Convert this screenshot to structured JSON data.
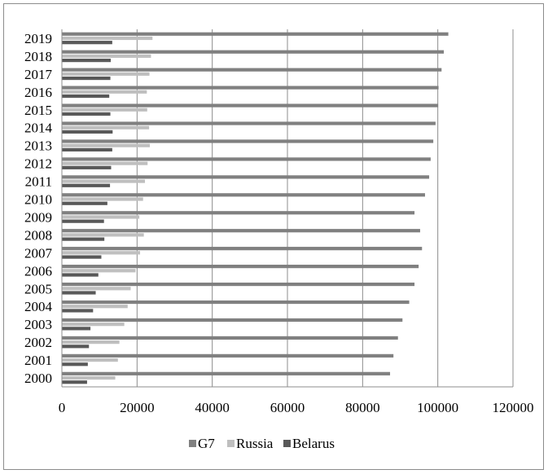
{
  "chart_data": {
    "type": "bar",
    "orientation": "horizontal",
    "categories": [
      "2000",
      "2001",
      "2002",
      "2003",
      "2004",
      "2005",
      "2006",
      "2007",
      "2008",
      "2009",
      "2010",
      "2011",
      "2012",
      "2013",
      "2014",
      "2015",
      "2016",
      "2017",
      "2018",
      "2019"
    ],
    "series": [
      {
        "name": "G7",
        "color": "#808080",
        "values": [
          87300,
          88200,
          89400,
          90600,
          92400,
          93800,
          94900,
          95800,
          95300,
          93800,
          96600,
          97700,
          98100,
          98800,
          99400,
          100100,
          100200,
          101000,
          101600,
          102800
        ]
      },
      {
        "name": "Russia",
        "color": "#bfbfbf",
        "values": [
          14200,
          14900,
          15300,
          16600,
          17500,
          18300,
          19600,
          20800,
          21800,
          20600,
          21600,
          22100,
          22800,
          23400,
          23200,
          22700,
          22600,
          23300,
          23700,
          24100
        ]
      },
      {
        "name": "Belarus",
        "color": "#595959",
        "values": [
          6700,
          6900,
          7200,
          7600,
          8300,
          9000,
          9700,
          10500,
          11300,
          11200,
          12100,
          12800,
          13100,
          13400,
          13500,
          12900,
          12600,
          12900,
          13000,
          13400
        ]
      }
    ],
    "xlim": [
      0,
      120000
    ],
    "xticks": [
      "0",
      "20000",
      "40000",
      "60000",
      "80000",
      "100000",
      "120000"
    ],
    "title": "",
    "xlabel": "",
    "ylabel": "",
    "grid": "vertical",
    "legend_position": "bottom"
  }
}
